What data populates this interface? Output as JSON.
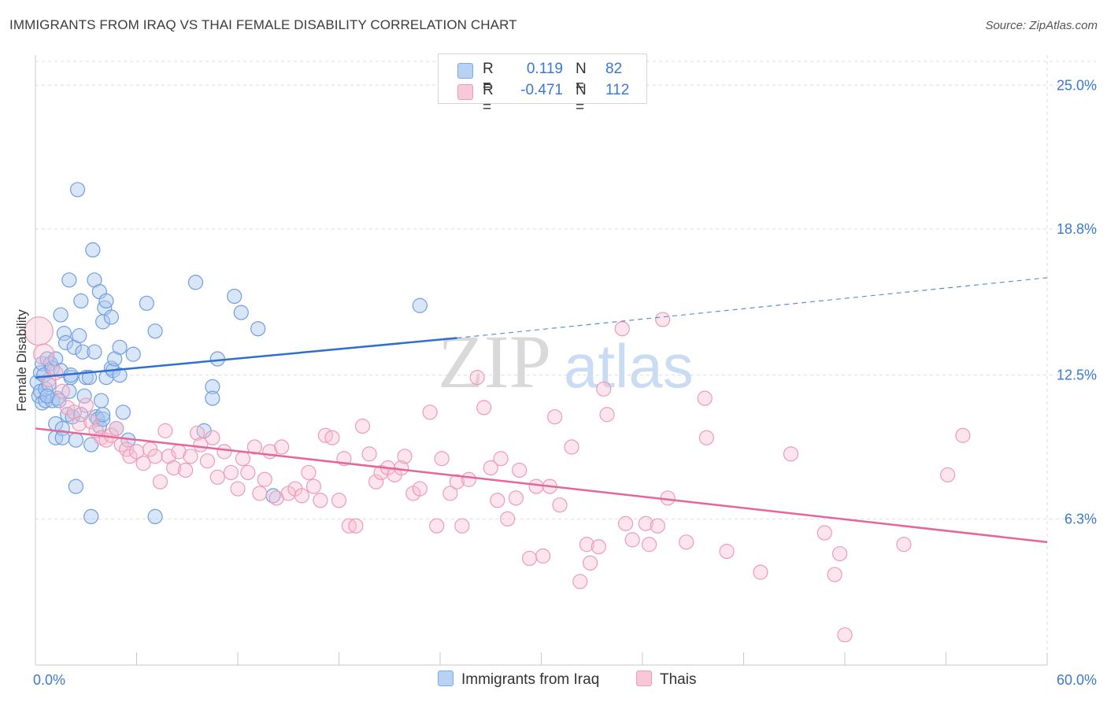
{
  "title": "IMMIGRANTS FROM IRAQ VS THAI FEMALE DISABILITY CORRELATION CHART",
  "source": "Source: ZipAtlas.com",
  "watermark": {
    "zip": "ZIP",
    "atlas": "atlas"
  },
  "legend": {
    "r_label": "R =",
    "n_label": "N =",
    "series": [
      {
        "name": "Immigrants from Iraq",
        "r": "0.119",
        "n": "82",
        "color": "#7aaae8",
        "fill": "#b9d1f3"
      },
      {
        "name": "Thais",
        "r": "-0.471",
        "n": "112",
        "color": "#f09bb8",
        "fill": "#f8c8d8"
      }
    ]
  },
  "chart_data": {
    "type": "scatter",
    "title": "IMMIGRANTS FROM IRAQ VS THAI FEMALE DISABILITY CORRELATION CHART",
    "xlabel": "",
    "ylabel": "Female Disability",
    "xlim": [
      0,
      60
    ],
    "ylim": [
      0,
      26.3
    ],
    "x_tick_labels": [
      "0.0%",
      "60.0%"
    ],
    "y_ticks": [
      6.3,
      12.5,
      18.8,
      25.0
    ],
    "y_tick_labels": [
      "6.3%",
      "12.5%",
      "18.8%",
      "25.0%"
    ],
    "grid": true,
    "series": [
      {
        "name": "Immigrants from Iraq",
        "color": "#3a78d4",
        "trend": {
          "x": [
            0,
            25,
            60
          ],
          "y": [
            12.4,
            14.1,
            16.7
          ],
          "solid_until_x": 25
        },
        "points": [
          [
            0.1,
            12.2
          ],
          [
            0.2,
            11.6
          ],
          [
            0.3,
            11.8
          ],
          [
            0.3,
            12.6
          ],
          [
            0.4,
            11.3
          ],
          [
            0.4,
            13.0
          ],
          [
            0.5,
            12.5
          ],
          [
            0.6,
            11.4
          ],
          [
            0.6,
            11.9
          ],
          [
            0.7,
            13.2
          ],
          [
            0.8,
            12.1
          ],
          [
            0.9,
            13.0
          ],
          [
            1.0,
            12.8
          ],
          [
            1.0,
            11.4
          ],
          [
            1.2,
            13.2
          ],
          [
            1.2,
            10.4
          ],
          [
            1.2,
            9.8
          ],
          [
            1.3,
            11.5
          ],
          [
            1.5,
            15.1
          ],
          [
            1.5,
            12.7
          ],
          [
            1.6,
            10.2
          ],
          [
            1.6,
            9.8
          ],
          [
            1.7,
            14.3
          ],
          [
            1.8,
            13.9
          ],
          [
            1.9,
            10.8
          ],
          [
            2.0,
            16.6
          ],
          [
            2.0,
            11.8
          ],
          [
            2.1,
            12.4
          ],
          [
            2.1,
            12.5
          ],
          [
            2.2,
            10.7
          ],
          [
            2.3,
            13.7
          ],
          [
            2.4,
            9.7
          ],
          [
            2.4,
            7.7
          ],
          [
            2.5,
            20.5
          ],
          [
            2.6,
            14.2
          ],
          [
            2.7,
            15.7
          ],
          [
            2.7,
            10.8
          ],
          [
            2.8,
            13.5
          ],
          [
            2.9,
            11.6
          ],
          [
            3.0,
            12.4
          ],
          [
            3.2,
            12.4
          ],
          [
            3.3,
            9.5
          ],
          [
            3.3,
            6.4
          ],
          [
            3.4,
            17.9
          ],
          [
            3.5,
            16.6
          ],
          [
            3.5,
            13.5
          ],
          [
            3.6,
            10.7
          ],
          [
            3.7,
            10.6
          ],
          [
            3.8,
            16.1
          ],
          [
            3.8,
            10.3
          ],
          [
            4.0,
            14.8
          ],
          [
            4.0,
            10.6
          ],
          [
            4.0,
            10.8
          ],
          [
            4.1,
            15.4
          ],
          [
            4.2,
            15.7
          ],
          [
            4.2,
            12.4
          ],
          [
            4.5,
            15.0
          ],
          [
            4.5,
            12.8
          ],
          [
            4.6,
            12.7
          ],
          [
            4.7,
            13.2
          ],
          [
            4.8,
            10.2
          ],
          [
            5.0,
            13.7
          ],
          [
            5.0,
            12.5
          ],
          [
            5.2,
            10.9
          ],
          [
            5.5,
            9.7
          ],
          [
            5.8,
            13.4
          ],
          [
            6.6,
            15.6
          ],
          [
            7.1,
            14.4
          ],
          [
            7.1,
            6.4
          ],
          [
            9.5,
            16.5
          ],
          [
            10.0,
            10.1
          ],
          [
            10.5,
            12.0
          ],
          [
            10.5,
            11.5
          ],
          [
            10.8,
            13.2
          ],
          [
            11.8,
            15.9
          ],
          [
            12.2,
            15.2
          ],
          [
            13.2,
            14.5
          ],
          [
            14.1,
            7.3
          ],
          [
            22.8,
            15.5
          ],
          [
            0.7,
            11.6
          ],
          [
            1.4,
            11.4
          ],
          [
            3.9,
            11.4
          ]
        ]
      },
      {
        "name": "Thais",
        "color": "#e8719b",
        "trend": {
          "x": [
            0,
            60
          ],
          "y": [
            10.2,
            5.3
          ]
        },
        "points": [
          [
            0.2,
            14.4
          ],
          [
            0.5,
            13.4
          ],
          [
            0.8,
            12.3
          ],
          [
            1.2,
            12.6
          ],
          [
            1.6,
            11.8
          ],
          [
            1.9,
            11.1
          ],
          [
            2.3,
            10.9
          ],
          [
            2.6,
            10.4
          ],
          [
            3.0,
            11.2
          ],
          [
            3.3,
            10.5
          ],
          [
            3.6,
            10.1
          ],
          [
            3.9,
            9.8
          ],
          [
            4.2,
            9.7
          ],
          [
            4.5,
            9.9
          ],
          [
            4.8,
            10.2
          ],
          [
            5.1,
            9.5
          ],
          [
            5.4,
            9.3
          ],
          [
            5.6,
            9.0
          ],
          [
            6.0,
            9.2
          ],
          [
            6.4,
            8.7
          ],
          [
            6.8,
            9.3
          ],
          [
            7.1,
            9.0
          ],
          [
            7.4,
            7.9
          ],
          [
            7.7,
            10.1
          ],
          [
            7.9,
            9.0
          ],
          [
            8.2,
            8.5
          ],
          [
            8.5,
            9.2
          ],
          [
            8.9,
            8.4
          ],
          [
            9.2,
            9.0
          ],
          [
            9.6,
            10.0
          ],
          [
            9.8,
            9.5
          ],
          [
            10.2,
            8.8
          ],
          [
            10.5,
            9.8
          ],
          [
            10.8,
            8.1
          ],
          [
            11.2,
            9.2
          ],
          [
            11.6,
            8.3
          ],
          [
            12.0,
            7.6
          ],
          [
            12.3,
            8.9
          ],
          [
            12.6,
            8.3
          ],
          [
            13.0,
            9.4
          ],
          [
            13.3,
            7.4
          ],
          [
            13.6,
            8.0
          ],
          [
            13.9,
            9.2
          ],
          [
            14.3,
            7.2
          ],
          [
            14.6,
            9.4
          ],
          [
            15.0,
            7.4
          ],
          [
            15.4,
            7.6
          ],
          [
            15.8,
            7.3
          ],
          [
            16.2,
            8.3
          ],
          [
            16.5,
            7.7
          ],
          [
            16.9,
            7.1
          ],
          [
            17.2,
            9.9
          ],
          [
            17.6,
            9.8
          ],
          [
            18.0,
            7.1
          ],
          [
            18.3,
            8.9
          ],
          [
            18.6,
            6.0
          ],
          [
            19.0,
            6.0
          ],
          [
            19.4,
            10.3
          ],
          [
            19.8,
            9.1
          ],
          [
            20.2,
            7.9
          ],
          [
            20.5,
            8.3
          ],
          [
            20.9,
            8.5
          ],
          [
            21.3,
            8.2
          ],
          [
            21.7,
            8.5
          ],
          [
            21.9,
            9.0
          ],
          [
            22.4,
            7.4
          ],
          [
            22.8,
            7.6
          ],
          [
            23.4,
            10.9
          ],
          [
            23.8,
            6.0
          ],
          [
            24.1,
            8.9
          ],
          [
            24.6,
            7.4
          ],
          [
            25.0,
            7.9
          ],
          [
            25.3,
            6.0
          ],
          [
            25.7,
            8.0
          ],
          [
            26.2,
            12.4
          ],
          [
            26.6,
            11.1
          ],
          [
            27.0,
            8.5
          ],
          [
            27.4,
            7.1
          ],
          [
            27.6,
            8.9
          ],
          [
            28.5,
            7.2
          ],
          [
            28.7,
            8.4
          ],
          [
            29.3,
            4.6
          ],
          [
            29.7,
            7.7
          ],
          [
            30.1,
            4.7
          ],
          [
            30.5,
            7.7
          ],
          [
            30.8,
            10.7
          ],
          [
            31.1,
            6.9
          ],
          [
            31.8,
            9.4
          ],
          [
            32.3,
            3.6
          ],
          [
            32.7,
            5.2
          ],
          [
            32.9,
            4.4
          ],
          [
            33.4,
            5.1
          ],
          [
            33.7,
            11.9
          ],
          [
            33.9,
            10.8
          ],
          [
            34.8,
            14.5
          ],
          [
            35.4,
            5.4
          ],
          [
            36.2,
            6.1
          ],
          [
            36.4,
            5.2
          ],
          [
            36.9,
            6.0
          ],
          [
            37.2,
            14.9
          ],
          [
            37.5,
            7.2
          ],
          [
            38.6,
            5.3
          ],
          [
            39.7,
            11.5
          ],
          [
            39.8,
            9.8
          ],
          [
            43.0,
            4.0
          ],
          [
            44.8,
            9.1
          ],
          [
            46.8,
            5.7
          ],
          [
            47.4,
            3.9
          ],
          [
            47.7,
            4.8
          ],
          [
            48.0,
            1.3
          ],
          [
            51.5,
            5.2
          ],
          [
            54.1,
            8.2
          ],
          [
            55.0,
            9.9
          ],
          [
            41.0,
            4.9
          ],
          [
            35.0,
            6.1
          ],
          [
            28.0,
            6.3
          ]
        ]
      }
    ]
  }
}
